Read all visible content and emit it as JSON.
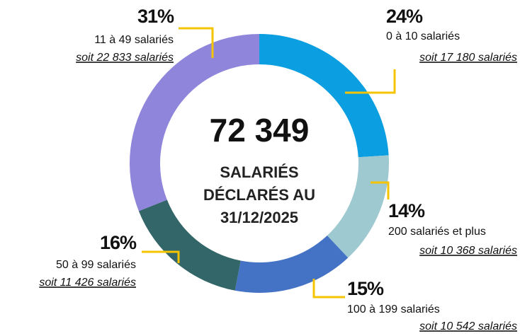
{
  "chart_data": {
    "type": "donut",
    "center_value": "72 349",
    "center_lines": [
      "SALARIÉS",
      "DÉCLARÉS AU",
      "31/12/2025"
    ],
    "categories": [
      "0 à 10 salariés",
      "200 salariés et plus",
      "100 à 199 salariés",
      "50 à 99 salariés",
      "11 à 49 salariés"
    ],
    "values": [
      24,
      14,
      15,
      16,
      31
    ],
    "value_labels": [
      "24%",
      "14%",
      "15%",
      "16%",
      "31%"
    ],
    "counts": [
      17180,
      10368,
      10542,
      11426,
      22833
    ],
    "count_labels": [
      "soit 17 180 salariés",
      "soit 10 368 salariés",
      "soit 10 542 salariés",
      "soit 11 426 salariés",
      "soit 22 833 salariés"
    ],
    "colors": [
      "#0b9ee0",
      "#9ec9d0",
      "#4472c4",
      "#336668",
      "#8f86dc"
    ]
  }
}
